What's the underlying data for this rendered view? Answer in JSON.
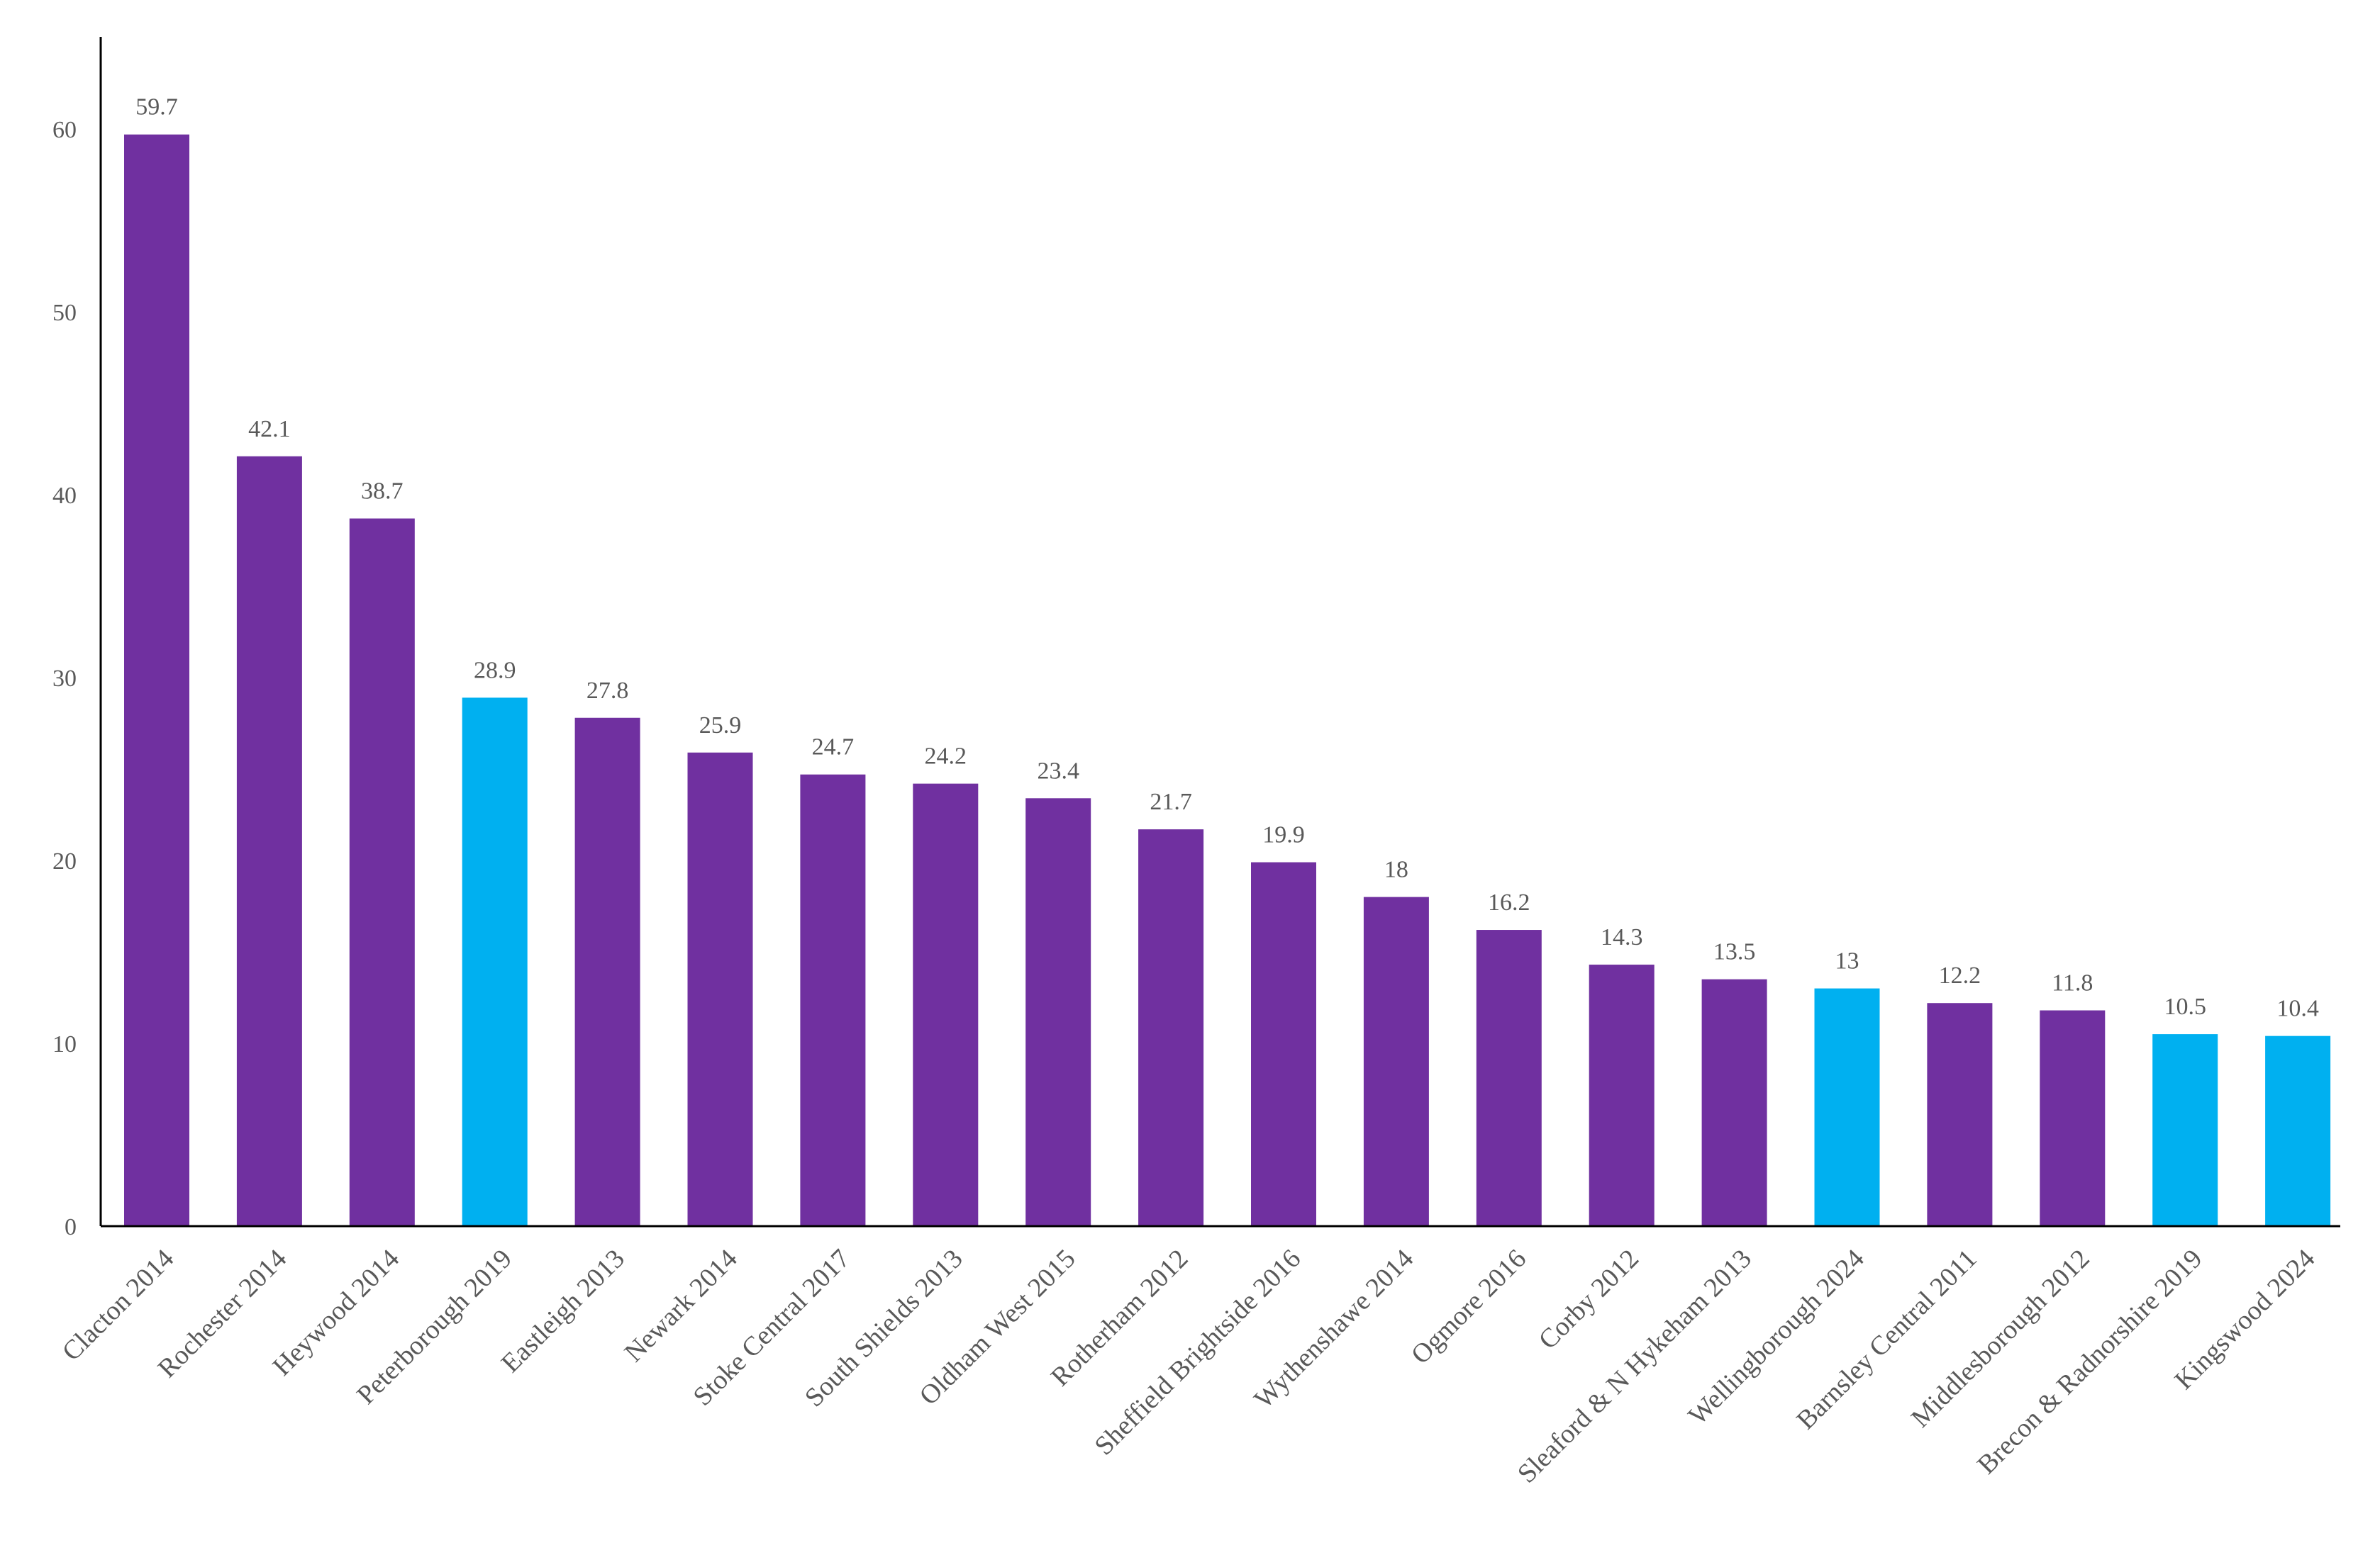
{
  "chart_data": {
    "type": "bar",
    "title": "",
    "xlabel": "",
    "ylabel": "",
    "ylim": [
      0,
      65
    ],
    "yticks": [
      0,
      10,
      20,
      30,
      40,
      50,
      60
    ],
    "grid": false,
    "legend": "none",
    "categories": [
      "Clacton 2014",
      "Rochester 2014",
      "Heywood 2014",
      "Peterborough 2019",
      "Eastleigh 2013",
      "Newark 2014",
      "Stoke Central 2017",
      "South Shields 2013",
      "Oldham West 2015",
      "Rotherham 2012",
      "Sheffield Brightside 2016",
      "Wythenshawe 2014",
      "Ogmore 2016",
      "Corby 2012",
      "Sleaford & N Hykeham 2013",
      "Wellingborough 2024",
      "Barnsley Central 2011",
      "Middlesborough 2012",
      "Brecon & Radnorshire 2019",
      "Kingswood 2024"
    ],
    "values": [
      59.7,
      42.1,
      38.7,
      28.9,
      27.8,
      25.9,
      24.7,
      24.2,
      23.4,
      21.7,
      19.9,
      18,
      16.2,
      14.3,
      13.5,
      13,
      12.2,
      11.8,
      10.5,
      10.4
    ],
    "value_labels": [
      "59.7",
      "42.1",
      "38.7",
      "28.9",
      "27.8",
      "25.9",
      "24.7",
      "24.2",
      "23.4",
      "21.7",
      "19.9",
      "18",
      "16.2",
      "14.3",
      "13.5",
      "13",
      "12.2",
      "11.8",
      "10.5",
      "10.4"
    ],
    "highlighted": [
      false,
      false,
      false,
      true,
      false,
      false,
      false,
      false,
      false,
      false,
      false,
      false,
      false,
      false,
      false,
      true,
      false,
      false,
      true,
      true
    ],
    "colors": {
      "default_bar": "#7030A0",
      "highlight_bar": "#00B0F0",
      "axis": "#000000",
      "text": "#595959"
    }
  }
}
